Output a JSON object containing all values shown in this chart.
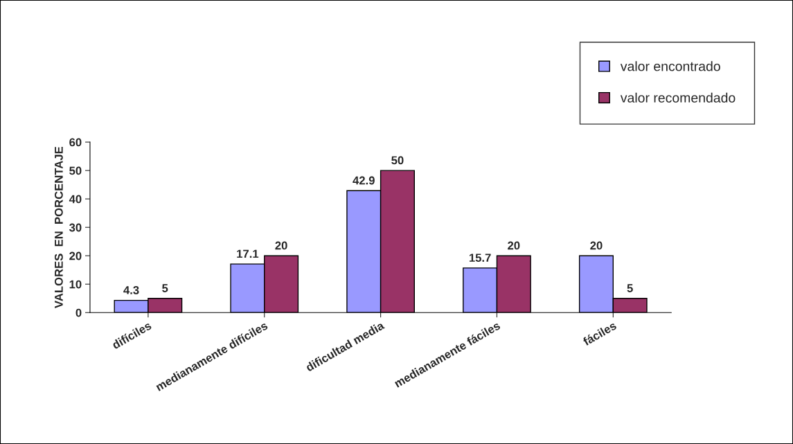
{
  "chart_data": {
    "type": "bar",
    "ylabel": "VALORES  EN  PORCENTAJE",
    "categories": [
      "difíciles",
      "medianamente difíciles",
      "dificultad media",
      "medianamente fáciles",
      "fáciles"
    ],
    "series": [
      {
        "name": "valor encontrado",
        "color": "#9999ff",
        "values": [
          4.3,
          17.1,
          42.9,
          15.7,
          20
        ]
      },
      {
        "name": "valor recomendado",
        "color": "#993366",
        "values": [
          5,
          20,
          50,
          20,
          5
        ]
      }
    ],
    "ylim": [
      0,
      60
    ],
    "yticks": [
      0,
      10,
      20,
      30,
      40,
      50,
      60
    ],
    "grid": false,
    "legend": "top right",
    "data_labels": true
  }
}
